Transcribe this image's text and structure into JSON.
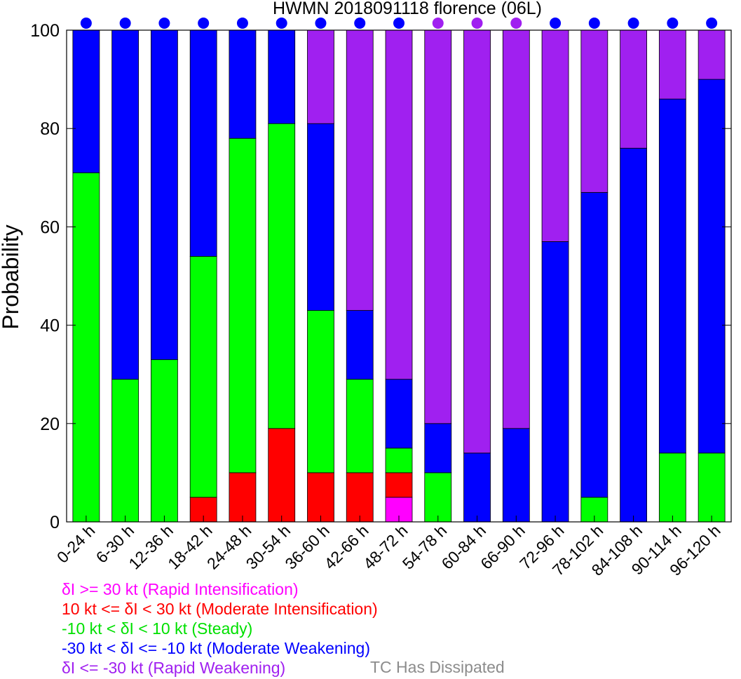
{
  "chart_data": {
    "type": "bar",
    "title": "HWMN 2018091118 florence (06L)",
    "ylabel": "Probability",
    "xlabel": "",
    "ylim": [
      0,
      100
    ],
    "yticks": [
      0,
      20,
      40,
      60,
      80,
      100
    ],
    "stacked": true,
    "categories": [
      "0-24 h",
      "6-30 h",
      "12-36 h",
      "18-42 h",
      "24-48 h",
      "30-54 h",
      "36-60 h",
      "42-66 h",
      "48-72 h",
      "54-78 h",
      "60-84 h",
      "66-90 h",
      "72-96 h",
      "78-102 h",
      "84-108 h",
      "90-114 h",
      "96-120 h"
    ],
    "series": [
      {
        "key": "ri",
        "color": "#ff00ff",
        "values": [
          0,
          0,
          0,
          0,
          0,
          0,
          0,
          0,
          5,
          0,
          0,
          0,
          0,
          0,
          0,
          0,
          0
        ]
      },
      {
        "key": "mi",
        "color": "#ff0000",
        "values": [
          0,
          0,
          0,
          5,
          10,
          19,
          10,
          10,
          5,
          0,
          0,
          0,
          0,
          0,
          0,
          0,
          0
        ]
      },
      {
        "key": "steady",
        "color": "#00ff00",
        "values": [
          71,
          29,
          33,
          49,
          68,
          62,
          33,
          19,
          5,
          10,
          0,
          0,
          0,
          5,
          0,
          14,
          14
        ]
      },
      {
        "key": "mw",
        "color": "#0000ff",
        "values": [
          29,
          71,
          67,
          46,
          22,
          19,
          38,
          14,
          14,
          10,
          14,
          19,
          57,
          62,
          76,
          72,
          76
        ]
      },
      {
        "key": "rw",
        "color": "#a020f0",
        "values": [
          0,
          0,
          0,
          0,
          0,
          0,
          19,
          57,
          71,
          80,
          86,
          81,
          43,
          33,
          24,
          14,
          10
        ]
      }
    ],
    "top_markers": [
      "mw",
      "mw",
      "mw",
      "mw",
      "mw",
      "mw",
      "mw",
      "mw",
      "mw",
      "rw",
      "rw",
      "rw",
      "mw",
      "mw",
      "mw",
      "mw",
      "mw"
    ],
    "legend": [
      {
        "label": "δI >= 30 kt (Rapid Intensification)",
        "color": "#ff00ff"
      },
      {
        "label": "10 kt <= δI < 30 kt (Moderate Intensification)",
        "color": "#ff0000"
      },
      {
        "label": "-10 kt < δI < 10 kt (Steady)",
        "color": "#00e000"
      },
      {
        "label": "-30 kt < δI <= -10 kt (Moderate Weakening)",
        "color": "#0000ff"
      },
      {
        "label": "δI <= -30 kt (Rapid Weakening)",
        "color": "#a020f0"
      }
    ],
    "dissipated_label": "TC Has Dissipated",
    "dissipated_color": "#8c8c8c"
  }
}
